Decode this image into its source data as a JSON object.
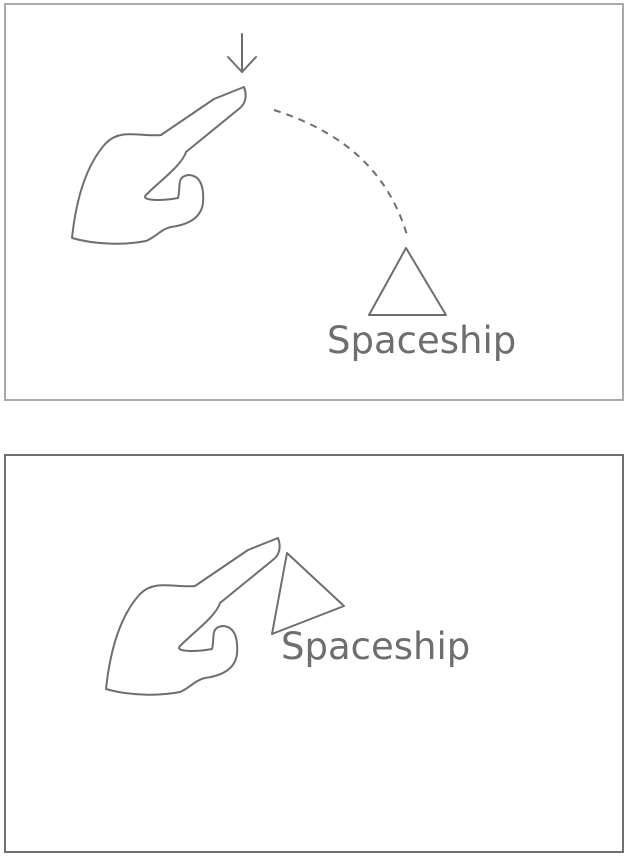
{
  "panels": {
    "before": {
      "ship_label": "Spaceship",
      "icons": [
        "pointing-hand-icon",
        "down-arrow-icon",
        "triangle-ship-icon"
      ]
    },
    "after": {
      "ship_label": "Spaceship",
      "icons": [
        "pointing-hand-icon",
        "triangle-ship-icon"
      ]
    }
  },
  "colors": {
    "stroke": "#6e6e6e",
    "top_border": "#a9a9a9",
    "bottom_border": "#6f6f6f",
    "background": "#ffffff"
  }
}
